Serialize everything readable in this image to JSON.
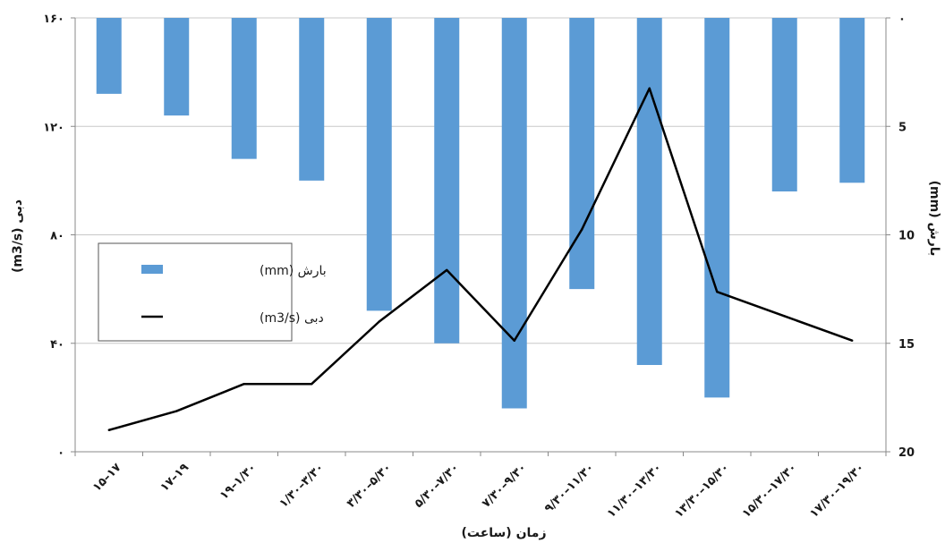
{
  "chart_data": {
    "type": "bar",
    "title": "",
    "categories": [
      "15–17",
      "17–19",
      "19–1/30",
      "1/30–3/30",
      "3/30–5/30",
      "5/30–7/30",
      "7/30–9/30",
      "9/30–11/30",
      "11/30–13/30",
      "13/30–15/30",
      "15/30–17/30",
      "17/30–19/30"
    ],
    "category_labels": [
      "۱۵–۱۷",
      "۱۷–۱۹",
      "۱۹–۱/۳۰",
      "۱/۳۰–۳/۳۰",
      "۳/۳۰–۵/۳۰",
      "۵/۳۰–۷/۳۰",
      "۷/۳۰–۹/۳۰",
      "۹/۳۰–۱۱/۳۰",
      "۱۱/۳۰–۱۳/۳۰",
      "۱۳/۳۰–۱۵/۳۰",
      "۱۵/۳۰–۱۷/۳۰",
      "۱۷/۳۰–۱۹/۳۰"
    ],
    "series": [
      {
        "name": "بارش (mm)",
        "type": "bar",
        "axis": "right",
        "color": "#5b9bd5",
        "values": [
          3.5,
          4.5,
          6.5,
          7.5,
          13.5,
          15,
          18,
          12.5,
          16,
          17.5,
          8,
          7.6
        ]
      },
      {
        "name": "دبی (m3/s)",
        "type": "line",
        "axis": "left",
        "color": "#000000",
        "values": [
          8,
          15,
          25,
          25,
          48,
          67,
          41,
          82,
          134,
          59,
          50,
          41
        ]
      }
    ],
    "xlabel": "زمان (ساعت)",
    "ylabel_left": "دبی (m3/s)",
    "ylabel_right": "بارش (mm)",
    "ylim_left": [
      0,
      160
    ],
    "ylim_right": [
      0,
      20
    ],
    "right_axis_inverted": true,
    "yticks_left": [
      0,
      40,
      80,
      120,
      160
    ],
    "ytick_labels_left": [
      "۰",
      "۴۰",
      "۸۰",
      "۱۲۰",
      "۱۶۰"
    ],
    "yticks_right": [
      0,
      5,
      10,
      15,
      20
    ],
    "ytick_labels_right": [
      "۰",
      "5",
      "10",
      "15",
      "20"
    ],
    "grid": true,
    "legend": {
      "position": "left",
      "entries": [
        {
          "label": "بارش  (mm)",
          "kind": "bar"
        },
        {
          "label": "دبی  (m3/s)",
          "kind": "line"
        }
      ]
    }
  }
}
